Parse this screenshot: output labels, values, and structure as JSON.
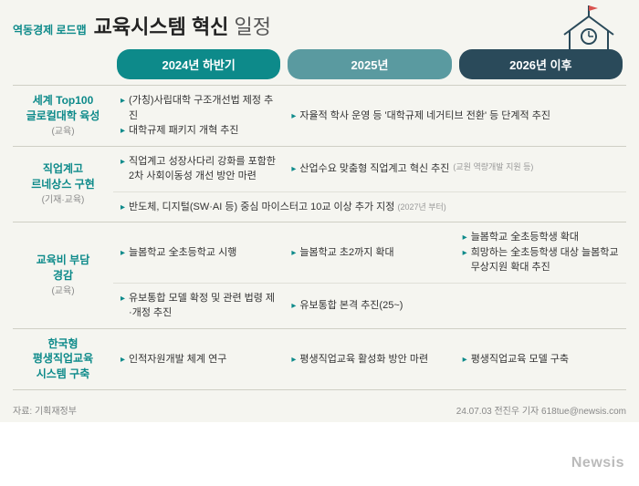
{
  "header": {
    "subtitle": "역동경제 로드맵",
    "title_bold": "교육시스템 혁신",
    "title_light": "일정"
  },
  "columns": {
    "c1": "2024년 하반기",
    "c2": "2025년",
    "c3": "2026년 이후"
  },
  "rows": [
    {
      "label": "세계 Top100\n글로컬대학 육성",
      "sub": "(교육)",
      "cells": [
        {
          "span": 1,
          "items": [
            "(가칭)사립대학 구조개선법 제정 추진",
            "대학규제 패키지 개혁 추진"
          ],
          "border": "main"
        },
        {
          "span": 2,
          "items": [
            "자율적 학사 운영 등 '대학규제 네거티브 전환' 등 단계적 추진"
          ],
          "border": "main"
        }
      ]
    },
    {
      "label": "직업계고\n르네상스 구현",
      "sub": "(기재·교육)",
      "cells": [
        {
          "span": 1,
          "items": [
            "직업계고 성장사다리 강화를 포함한 2차 사회이동성 개선 방안 마련"
          ],
          "border": "main"
        },
        {
          "span": 2,
          "items": [
            "산업수요 맞춤형 직업계고 혁신 추진",
            "_note:(교원 역량개발 지원 등)"
          ],
          "border": "main"
        }
      ],
      "cells2": [
        {
          "span": 3,
          "items": [
            "반도체, 디지털(SW·AI 등) 중심 마이스터고 10교 이상 추가 지정 _tail:(2027년 부터)"
          ],
          "border": "inner"
        }
      ]
    },
    {
      "label": "교육비 부담\n경감",
      "sub": "(교육)",
      "cells": [
        {
          "span": 1,
          "items": [
            "늘봄학교 全초등학교 시행"
          ],
          "border": "main"
        },
        {
          "span": 1,
          "items": [
            "늘봄학교 초2까지 확대"
          ],
          "border": "main"
        },
        {
          "span": 1,
          "items": [
            "늘봄학교 全초등학생 확대",
            "희망하는 全초등학생 대상 늘봄학교 무상지원 확대 추진"
          ],
          "border": "main"
        }
      ],
      "cells2": [
        {
          "span": 1,
          "items": [
            "유보통합 모델 확정 및 관련 법령 제·개정 추진"
          ],
          "border": "inner"
        },
        {
          "span": 2,
          "items": [
            "유보통합 본격 추진(25~)"
          ],
          "border": "inner"
        }
      ]
    },
    {
      "label": "한국형\n평생직업교육\n시스템 구축",
      "sub": "",
      "cells": [
        {
          "span": 1,
          "items": [
            "인적자원개발 체계 연구"
          ],
          "border": "main"
        },
        {
          "span": 1,
          "items": [
            "평생직업교육 활성화 방안 마련"
          ],
          "border": "main"
        },
        {
          "span": 1,
          "items": [
            "평생직업교육 모델 구축"
          ],
          "border": "main"
        }
      ]
    }
  ],
  "footer": {
    "source": "자료: 기획재정부",
    "credit": "24.07.03 전진우 기자 618tue@newsis.com"
  },
  "watermark": "Newsis",
  "colors": {
    "teal": "#0d8a8a",
    "mid": "#5a9aa0",
    "dark": "#2a4a5a",
    "bg": "#f5f5f0",
    "line": "#cfcfc5"
  }
}
